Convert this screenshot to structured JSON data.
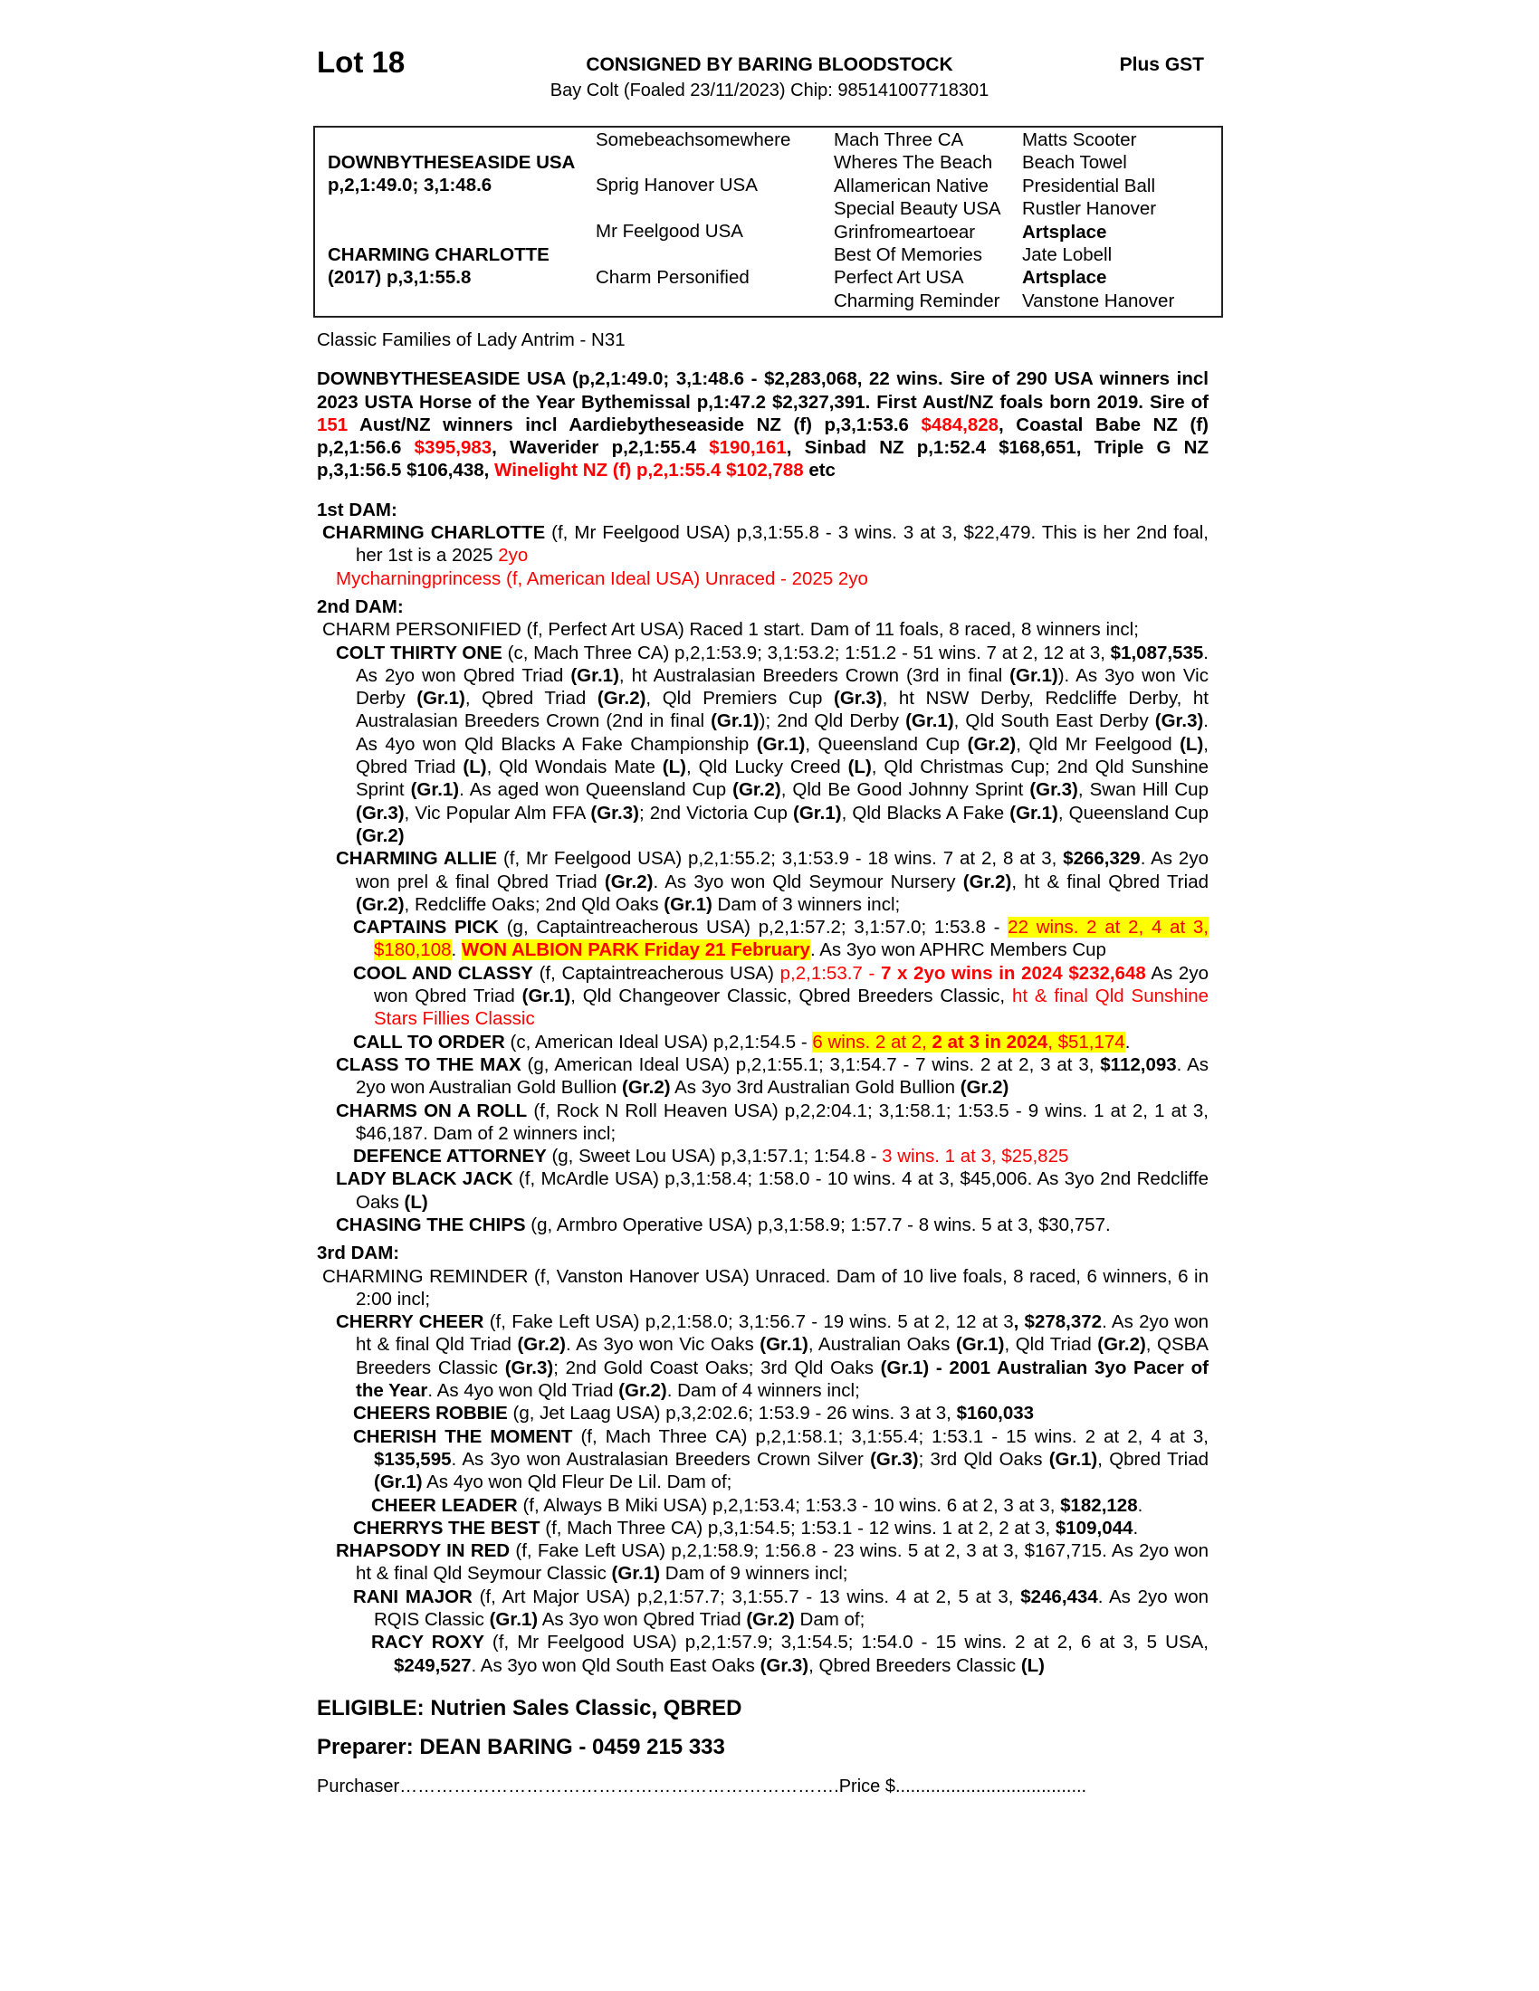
{
  "header": {
    "lot": "Lot 18",
    "consignor": "CONSIGNED BY BARING BLOODSTOCK",
    "gst": "Plus GST",
    "subtitle": "Bay Colt (Foaled 23/11/2023) Chip: 985141007718301"
  },
  "pedigree": {
    "sire": "DOWNBYTHESEASIDE USA",
    "sire_record": "p,2,1:49.0; 3,1:48.6",
    "dam": "CHARMING CHARLOTTE",
    "dam_record": "(2017) p,3,1:55.8",
    "gen2": [
      "Somebeachsomewhere",
      "Sprig Hanover USA",
      "Mr Feelgood USA",
      "Charm Personified"
    ],
    "gen3": [
      "Mach Three CA",
      "Wheres The Beach",
      "Allamerican Native",
      "Special Beauty USA",
      "Grinfromeartoear",
      "Best Of Memories",
      "Perfect Art USA",
      "Charming Reminder"
    ],
    "gen4": [
      "Matts Scooter",
      "Beach Towel",
      "Presidential Ball",
      "Rustler Hanover",
      "Artsplace",
      "Jate Lobell",
      "Artsplace",
      "Vanstone Hanover"
    ],
    "gen4_bold": [
      false,
      false,
      false,
      false,
      true,
      false,
      true,
      false
    ]
  },
  "family": "Classic Families of Lady Antrim - N31",
  "colors": {
    "red": "#ff0000",
    "highlight": "#ffff00"
  },
  "body": [
    {
      "cls": "sire",
      "segs": [
        [
          "DOWNBYTHESEASIDE USA (p,2,1:49.0; 3,1:48.6 - $2,283,068, 22 wins. Sire of 290 USA winners incl 2023 USTA Horse of the Year Bythemissal p,1:47.2 $2,327,391. First Aust/NZ foals born 2019. Sire of ",
          "b"
        ],
        [
          "151",
          "br"
        ],
        [
          " Aust/NZ winners incl Aardiebytheseaside NZ (f) p,3,1:53.6 ",
          "b"
        ],
        [
          "$484,828",
          "br"
        ],
        [
          ", Coastal Babe NZ (f) p,2,1:56.6 ",
          "b"
        ],
        [
          "$395,983",
          "br"
        ],
        [
          ", Waverider p,2,1:55.4 ",
          "b"
        ],
        [
          "$190,161",
          "br"
        ],
        [
          ", Sinbad NZ p,1:52.4 $168,651, Triple G NZ p,3,1:56.5 $106,438, ",
          "b"
        ],
        [
          "Winelight NZ (f) p,2,1:55.4 $102,788",
          "br"
        ],
        [
          " etc",
          "b"
        ]
      ]
    },
    {
      "cls": "head",
      "segs": [
        [
          "1st DAM:",
          ""
        ]
      ]
    },
    {
      "cls": "p l0",
      "segs": [
        [
          "CHARMING CHARLOTTE",
          "b"
        ],
        [
          " (f, Mr Feelgood USA) p,3,1:55.8 - 3 wins. 3 at 3, $22,479. This is her 2nd foal, her 1st is a 2025 ",
          ""
        ],
        [
          "2yo",
          "r"
        ]
      ]
    },
    {
      "cls": "p l0b",
      "segs": [
        [
          "Mycharningprincess (f, American Ideal USA) Unraced - 2025 2yo",
          "r"
        ]
      ]
    },
    {
      "cls": "head",
      "segs": [
        [
          "2nd DAM:",
          ""
        ]
      ]
    },
    {
      "cls": "p l0",
      "segs": [
        [
          "CHARM PERSONIFIED (f, Perfect Art USA) Raced 1 start. Dam of 11 foals, 8 raced, 8 winners incl;",
          ""
        ]
      ]
    },
    {
      "cls": "p l1",
      "segs": [
        [
          "COLT THIRTY ONE",
          "b"
        ],
        [
          " (c, Mach Three CA) p,2,1:53.9; 3,1:53.2; 1:51.2 - 51 wins. 7 at 2, 12 at 3, ",
          ""
        ],
        [
          "$1,087,535",
          "b"
        ],
        [
          ". As 2yo won Qbred Triad ",
          ""
        ],
        [
          "(Gr.1)",
          "b"
        ],
        [
          ", ht Australasian Breeders Crown (3rd in final ",
          ""
        ],
        [
          "(Gr.1)",
          "b"
        ],
        [
          "). As 3yo won Vic Derby ",
          ""
        ],
        [
          "(Gr.1)",
          "b"
        ],
        [
          ", Qbred Triad ",
          ""
        ],
        [
          "(Gr.2)",
          "b"
        ],
        [
          ", Qld Premiers Cup ",
          ""
        ],
        [
          "(Gr.3)",
          "b"
        ],
        [
          ", ht NSW Derby, Redcliffe Derby, ht Australasian Breeders Crown (2nd in final ",
          ""
        ],
        [
          "(Gr.1)",
          "b"
        ],
        [
          "); 2nd Qld Derby ",
          ""
        ],
        [
          "(Gr.1)",
          "b"
        ],
        [
          ", Qld South East Derby ",
          ""
        ],
        [
          "(Gr.3)",
          "b"
        ],
        [
          ". As 4yo won Qld Blacks A Fake Championship ",
          ""
        ],
        [
          "(Gr.1)",
          "b"
        ],
        [
          ", Queensland Cup ",
          ""
        ],
        [
          "(Gr.2)",
          "b"
        ],
        [
          ", Qld Mr Feelgood ",
          ""
        ],
        [
          "(L)",
          "b"
        ],
        [
          ", Qbred Triad ",
          ""
        ],
        [
          "(L)",
          "b"
        ],
        [
          ", Qld Wondais Mate ",
          ""
        ],
        [
          "(L)",
          "b"
        ],
        [
          ", Qld Lucky Creed ",
          ""
        ],
        [
          "(L)",
          "b"
        ],
        [
          ", Qld Christmas Cup; 2nd Qld Sunshine Sprint ",
          ""
        ],
        [
          "(Gr.1)",
          "b"
        ],
        [
          ". As aged won Queensland Cup ",
          ""
        ],
        [
          "(Gr.2)",
          "b"
        ],
        [
          ", Qld Be Good Johnny Sprint ",
          ""
        ],
        [
          "(Gr.3)",
          "b"
        ],
        [
          ", Swan Hill Cup ",
          ""
        ],
        [
          "(Gr.3)",
          "b"
        ],
        [
          ", Vic Popular Alm FFA ",
          ""
        ],
        [
          "(Gr.3)",
          "b"
        ],
        [
          "; 2nd Victoria Cup ",
          ""
        ],
        [
          "(Gr.1)",
          "b"
        ],
        [
          ", Qld Blacks A Fake ",
          ""
        ],
        [
          "(Gr.1)",
          "b"
        ],
        [
          ", Queensland Cup ",
          ""
        ],
        [
          "(Gr.2)",
          "b"
        ]
      ]
    },
    {
      "cls": "p l1",
      "segs": [
        [
          "CHARMING ALLIE",
          "b"
        ],
        [
          " (f, Mr Feelgood USA) p,2,1:55.2; 3,1:53.9 - 18 wins. 7 at 2, 8 at 3, ",
          ""
        ],
        [
          "$266,329",
          "b"
        ],
        [
          ". As 2yo won prel & final Qbred Triad ",
          ""
        ],
        [
          "(Gr.2)",
          "b"
        ],
        [
          ". As 3yo won Qld Seymour Nursery ",
          ""
        ],
        [
          "(Gr.2)",
          "b"
        ],
        [
          ", ht & final Qbred Triad ",
          ""
        ],
        [
          "(Gr.2)",
          "b"
        ],
        [
          ", Redcliffe Oaks; 2nd Qld Oaks ",
          ""
        ],
        [
          "(Gr.1)",
          "b"
        ],
        [
          " Dam of 3 winners incl;",
          ""
        ]
      ]
    },
    {
      "cls": "p l2",
      "segs": [
        [
          "CAPTAINS PICK",
          "b"
        ],
        [
          " (g, Captaintreacherous USA) p,2,1:57.2; 3,1:57.0; 1:53.8 - ",
          ""
        ],
        [
          "22 wins. 2 at 2, 4 at 3, $180,108",
          "rh"
        ],
        [
          ". ",
          ""
        ],
        [
          "WON ALBION PARK Friday 21 February",
          "brh"
        ],
        [
          ". As 3yo won APHRC Members Cup",
          ""
        ]
      ]
    },
    {
      "cls": "p l2",
      "segs": [
        [
          "COOL AND CLASSY",
          "b"
        ],
        [
          " (f, Captaintreacherous USA) ",
          ""
        ],
        [
          "p,2,1:53.7 - ",
          "r"
        ],
        [
          "7 x 2yo wins in 2024 $232,648",
          "br"
        ],
        [
          " As 2yo won Qbred Triad ",
          ""
        ],
        [
          "(Gr.1)",
          "b"
        ],
        [
          ", Qld Changeover Classic, Qbred Breeders Classic, ",
          ""
        ],
        [
          "ht & final Qld Sunshine Stars Fillies Classic",
          "r"
        ]
      ]
    },
    {
      "cls": "p l2",
      "segs": [
        [
          "CALL TO ORDER",
          "b"
        ],
        [
          " (c, American Ideal USA) p,2,1:54.5 - ",
          ""
        ],
        [
          "6 wins. 2 at 2, ",
          "rh"
        ],
        [
          "2 at 3 in 2024",
          "brh"
        ],
        [
          ", $51,174",
          "rh"
        ],
        [
          ".",
          ""
        ]
      ]
    },
    {
      "cls": "p l1",
      "segs": [
        [
          "CLASS TO THE MAX",
          "b"
        ],
        [
          " (g, American Ideal USA) p,2,1:55.1; 3,1:54.7 - 7 wins. 2 at 2, 3 at 3, ",
          ""
        ],
        [
          "$112,093",
          "b"
        ],
        [
          ". As 2yo won Australian Gold Bullion ",
          ""
        ],
        [
          "(Gr.2)",
          "b"
        ],
        [
          " As 3yo 3rd Australian Gold Bullion ",
          ""
        ],
        [
          "(Gr.2)",
          "b"
        ]
      ]
    },
    {
      "cls": "p l1",
      "segs": [
        [
          "CHARMS ON A ROLL",
          "b"
        ],
        [
          " (f, Rock N Roll Heaven USA) p,2,2:04.1; 3,1:58.1; 1:53.5 - 9 wins. 1 at 2, 1 at 3, $46,187. Dam of 2 winners incl;",
          ""
        ]
      ]
    },
    {
      "cls": "p l2",
      "segs": [
        [
          "DEFENCE ATTORNEY",
          "b"
        ],
        [
          " (g, Sweet Lou USA) p,3,1:57.1; 1:54.8 - ",
          ""
        ],
        [
          "3 wins. 1 at 3, $25,825",
          "r"
        ]
      ]
    },
    {
      "cls": "p l1",
      "segs": [
        [
          "LADY BLACK JACK",
          "b"
        ],
        [
          " (f, McArdle USA) p,3,1:58.4; 1:58.0 - 10 wins. 4 at 3, $45,006. As 3yo 2nd Redcliffe Oaks ",
          ""
        ],
        [
          "(L)",
          "b"
        ]
      ]
    },
    {
      "cls": "p l1",
      "segs": [
        [
          "CHASING THE CHIPS",
          "b"
        ],
        [
          " (g, Armbro Operative USA) p,3,1:58.9; 1:57.7 - 8 wins. 5 at 3, $30,757.",
          ""
        ]
      ]
    },
    {
      "cls": "head",
      "segs": [
        [
          "3rd DAM:",
          ""
        ]
      ]
    },
    {
      "cls": "p l0",
      "segs": [
        [
          "CHARMING REMINDER (f, Vanston Hanover USA) Unraced. Dam of 10 live foals, 8 raced, 6 winners, 6 in 2:00 incl;",
          ""
        ]
      ]
    },
    {
      "cls": "p l1",
      "segs": [
        [
          "CHERRY CHEER",
          "b"
        ],
        [
          " (f, Fake Left USA) p,2,1:58.0; 3,1:56.7 - 19 wins. 5 at 2, 12 at 3",
          ""
        ],
        [
          ", $278,372",
          "b"
        ],
        [
          ". As 2yo won ht & final Qld Triad ",
          ""
        ],
        [
          "(Gr.2)",
          "b"
        ],
        [
          ". As 3yo won Vic Oaks ",
          ""
        ],
        [
          "(Gr.1)",
          "b"
        ],
        [
          ", Australian Oaks ",
          ""
        ],
        [
          "(Gr.1)",
          "b"
        ],
        [
          ", Qld Triad ",
          ""
        ],
        [
          "(Gr.2)",
          "b"
        ],
        [
          ", QSBA Breeders Classic ",
          ""
        ],
        [
          "(Gr.3)",
          "b"
        ],
        [
          "; 2nd Gold Coast Oaks; 3rd Qld Oaks ",
          ""
        ],
        [
          "(Gr.1) - 2001 Australian 3yo Pacer of the Year",
          "b"
        ],
        [
          ". As 4yo won Qld Triad ",
          ""
        ],
        [
          "(Gr.2)",
          "b"
        ],
        [
          ". Dam of 4 winners incl;",
          ""
        ]
      ]
    },
    {
      "cls": "p l2",
      "segs": [
        [
          "CHEERS ROBBIE",
          "b"
        ],
        [
          " (g, Jet Laag USA) p,3,2:02.6; 1:53.9 - 26 wins. 3 at 3, ",
          ""
        ],
        [
          "$160,033",
          "b"
        ]
      ]
    },
    {
      "cls": "p l2",
      "segs": [
        [
          "CHERISH THE MOMENT",
          "b"
        ],
        [
          " (f, Mach Three CA) p,2,1:58.1; 3,1:55.4; 1:53.1 - 15 wins. 2 at 2, 4 at 3, ",
          ""
        ],
        [
          "$135,595",
          "b"
        ],
        [
          ". As 3yo won Australasian Breeders Crown Silver ",
          ""
        ],
        [
          "(Gr.3)",
          "b"
        ],
        [
          "; 3rd Qld Oaks ",
          ""
        ],
        [
          "(Gr.1)",
          "b"
        ],
        [
          ", Qbred Triad ",
          ""
        ],
        [
          "(Gr.1)",
          "b"
        ],
        [
          " As 4yo won Qld Fleur De Lil. Dam of;",
          ""
        ]
      ]
    },
    {
      "cls": "p l3",
      "segs": [
        [
          "CHEER LEADER",
          "b"
        ],
        [
          " (f, Always B Miki USA) p,2,1:53.4; 1:53.3 - 10 wins. 6 at 2, 3 at 3, ",
          ""
        ],
        [
          "$182,128",
          "b"
        ],
        [
          ".",
          ""
        ]
      ]
    },
    {
      "cls": "p l2",
      "segs": [
        [
          "CHERRYS THE BEST",
          "b"
        ],
        [
          " (f, Mach Three CA) p,3,1:54.5; 1:53.1 - 12 wins. 1 at 2, 2 at 3, ",
          ""
        ],
        [
          "$109,044",
          "b"
        ],
        [
          ".",
          ""
        ]
      ]
    },
    {
      "cls": "p l1",
      "segs": [
        [
          "RHAPSODY IN RED",
          "b"
        ],
        [
          " (f, Fake Left USA) p,2,1:58.9; 1:56.8 - 23 wins. 5 at 2, 3 at 3, $167,715. As 2yo won ht & final Qld Seymour Classic ",
          ""
        ],
        [
          "(Gr.1)",
          "b"
        ],
        [
          " Dam of 9 winners incl;",
          ""
        ]
      ]
    },
    {
      "cls": "p l2",
      "segs": [
        [
          "RANI MAJOR",
          "b"
        ],
        [
          " (f, Art Major USA) p,2,1:57.7; 3,1:55.7 - 13 wins. 4 at 2, 5 at 3, ",
          ""
        ],
        [
          "$246,434",
          "b"
        ],
        [
          ". As 2yo won RQIS Classic ",
          ""
        ],
        [
          "(Gr.1)",
          "b"
        ],
        [
          " As 3yo won Qbred Triad ",
          ""
        ],
        [
          "(Gr.2)",
          "b"
        ],
        [
          " Dam of;",
          ""
        ]
      ]
    },
    {
      "cls": "p l3",
      "segs": [
        [
          "RACY ROXY",
          "b"
        ],
        [
          " (f, Mr Feelgood USA) p,2,1:57.9; 3,1:54.5; 1:54.0 - 15 wins. 2 at 2, 6 at 3, 5 USA, ",
          ""
        ],
        [
          "$249,527",
          "b"
        ],
        [
          ". As 3yo won Qld South East Oaks ",
          ""
        ],
        [
          "(Gr.3)",
          "b"
        ],
        [
          ", Qbred Breeders Classic ",
          ""
        ],
        [
          "(L)",
          "b"
        ]
      ]
    }
  ],
  "footer": {
    "eligible": "ELIGIBLE: Nutrien Sales Classic, QBRED",
    "preparer": "Preparer: DEAN BARING - 0459 215 333",
    "purchaser": "Purchaser……………………………………………………………….Price $......................................"
  }
}
